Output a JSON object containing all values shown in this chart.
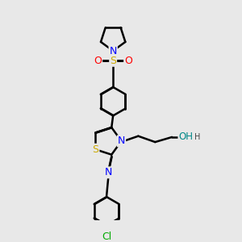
{
  "background_color": "#e8e8e8",
  "atom_colors": {
    "C": "#000000",
    "N": "#0000ff",
    "O": "#ff0000",
    "S_thiazole": "#ccaa00",
    "S_sulfonyl": "#ccaa00",
    "Cl": "#00aa00",
    "H": "#444444",
    "OH": "#008888"
  },
  "bond_color": "#000000",
  "bond_width": 1.8,
  "figsize": [
    3.0,
    3.0
  ],
  "dpi": 100
}
